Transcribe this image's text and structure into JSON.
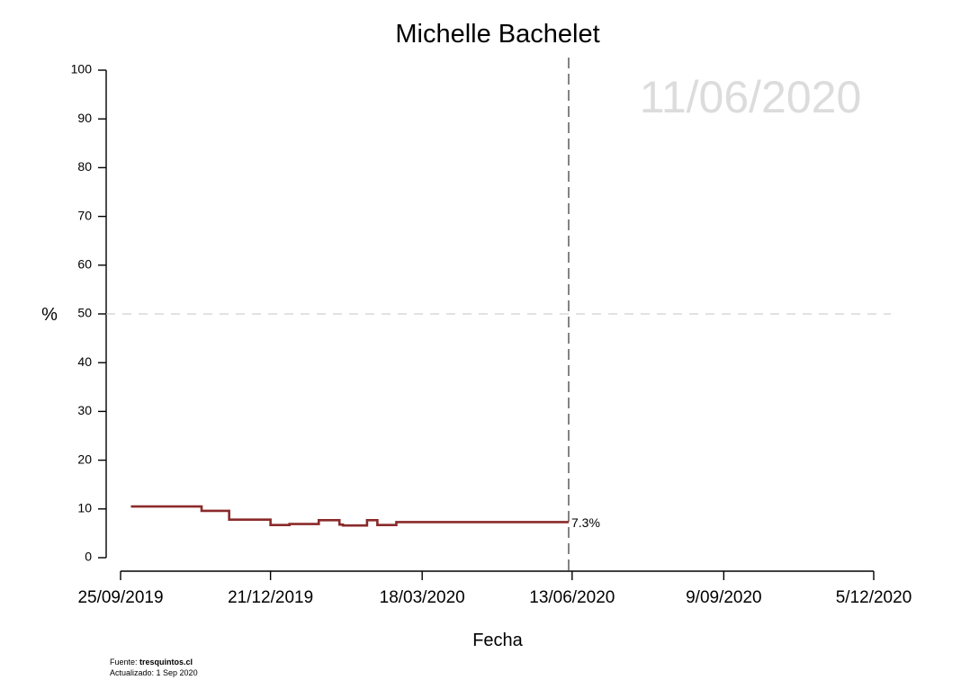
{
  "chart_data": {
    "type": "line",
    "title": "Michelle Bachelet",
    "xlabel": "Fecha",
    "ylabel": "%",
    "ylim": [
      0,
      100
    ],
    "yticks": [
      "0",
      "10",
      "20",
      "30",
      "40",
      "50",
      "60",
      "70",
      "80",
      "90",
      "100"
    ],
    "xlim": [
      "2019-09-25",
      "2020-12-05"
    ],
    "xticks": [
      {
        "date": "2019-09-25",
        "label": "25/09/2019"
      },
      {
        "date": "2019-12-21",
        "label": "21/12/2019"
      },
      {
        "date": "2020-03-18",
        "label": "18/03/2020"
      },
      {
        "date": "2020-06-13",
        "label": "13/06/2020"
      },
      {
        "date": "2020-09-09",
        "label": "9/09/2020"
      },
      {
        "date": "2020-12-05",
        "label": "5/12/2020"
      }
    ],
    "grid": false,
    "reference_line_y": 50,
    "current_date_line": "2020-06-11",
    "current_date_label": "11/06/2020",
    "end_label": "7.3%",
    "series": [
      {
        "color": "#8b2a2a",
        "step": true,
        "points": [
          {
            "x": "2019-10-01",
            "y": 10.5
          },
          {
            "x": "2019-11-11",
            "y": 9.6
          },
          {
            "x": "2019-11-27",
            "y": 7.8
          },
          {
            "x": "2019-12-21",
            "y": 6.7
          },
          {
            "x": "2020-01-01",
            "y": 6.9
          },
          {
            "x": "2020-01-18",
            "y": 7.7
          },
          {
            "x": "2020-01-30",
            "y": 6.8
          },
          {
            "x": "2020-02-01",
            "y": 6.6
          },
          {
            "x": "2020-02-15",
            "y": 7.7
          },
          {
            "x": "2020-02-21",
            "y": 6.7
          },
          {
            "x": "2020-03-03",
            "y": 7.3
          },
          {
            "x": "2020-06-11",
            "y": 7.3
          }
        ]
      }
    ]
  },
  "footer": {
    "source_prefix": "Fuente: ",
    "source_site": "tresquintos.cl",
    "updated": "Actualizado: 1 Sep 2020"
  }
}
